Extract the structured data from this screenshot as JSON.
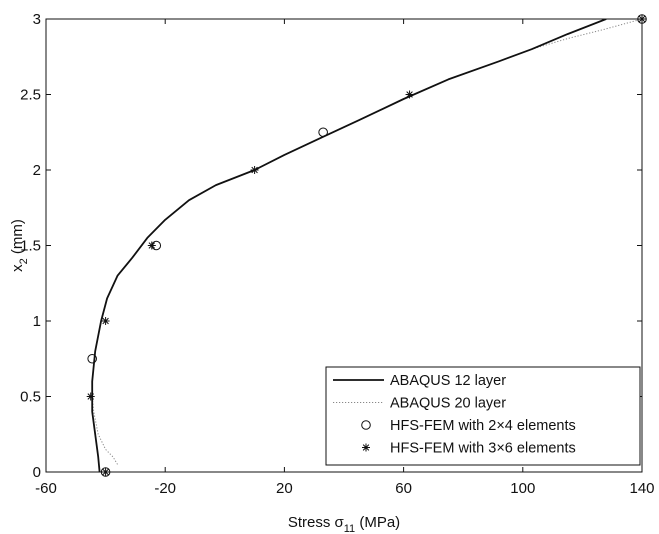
{
  "chart_data": {
    "type": "line",
    "xlabel": "Stress σ",
    "xlabel_subscript": "11",
    "xlabel_unit": " (MPa)",
    "ylabel": "x",
    "ylabel_subscript": "2",
    "ylabel_unit": " (mm)",
    "xlim": [
      -60,
      140
    ],
    "ylim": [
      0,
      3
    ],
    "xticks": [
      -60,
      -20,
      20,
      60,
      100,
      140
    ],
    "yticks": [
      0,
      0.5,
      1,
      1.5,
      2,
      2.5,
      3
    ],
    "xtick_labels": [
      "-60",
      "-20",
      "20",
      "60",
      "100",
      "140"
    ],
    "ytick_labels": [
      "0",
      "0.5",
      "1",
      "1.5",
      "2",
      "2.5",
      "3"
    ],
    "grid": false,
    "legend_position": "bottom-right",
    "series": [
      {
        "name": "ABAQUS 12 layer",
        "style": "solid",
        "color": "#111111",
        "x": [
          -42,
          -42.5,
          -43.5,
          -44.5,
          -44.5,
          -43.5,
          -41.5,
          -39.5,
          -36,
          -31,
          -26,
          -20,
          -12,
          -3,
          10,
          20,
          33,
          45,
          60,
          75,
          92,
          103,
          115,
          128
        ],
        "y": [
          0,
          0.1,
          0.25,
          0.4,
          0.6,
          0.8,
          1.0,
          1.15,
          1.3,
          1.42,
          1.55,
          1.67,
          1.8,
          1.9,
          2.0,
          2.1,
          2.22,
          2.33,
          2.47,
          2.6,
          2.72,
          2.8,
          2.9,
          3.0
        ]
      },
      {
        "name": "ABAQUS 20 layer",
        "style": "dotted",
        "color": "#888888",
        "x": [
          -36,
          -37.5,
          -40,
          -42.5,
          -44,
          -44.5,
          -44.5,
          -43.5,
          -41.5,
          -39.5,
          -36,
          -31,
          -26,
          -20,
          -12,
          -3,
          10,
          20,
          33,
          45,
          60,
          75,
          92,
          103,
          115,
          127,
          140
        ],
        "y": [
          0.05,
          0.1,
          0.15,
          0.25,
          0.4,
          0.5,
          0.6,
          0.8,
          1.0,
          1.15,
          1.3,
          1.42,
          1.55,
          1.67,
          1.8,
          1.9,
          2.0,
          2.1,
          2.22,
          2.33,
          2.47,
          2.6,
          2.72,
          2.8,
          2.87,
          2.93,
          3.0
        ]
      },
      {
        "name": "HFS-FEM with 2×4 elements",
        "marker": "circle",
        "color": "#111111",
        "x": [
          -40,
          -44.5,
          -23,
          33,
          140
        ],
        "y": [
          0,
          0.75,
          1.5,
          2.25,
          3
        ]
      },
      {
        "name": "HFS-FEM with 3×6 elements",
        "marker": "asterisk",
        "color": "#111111",
        "x": [
          -40,
          -45,
          -40,
          -24.5,
          10,
          62,
          140
        ],
        "y": [
          0,
          0.5,
          1,
          1.5,
          2,
          2.5,
          3
        ]
      }
    ]
  }
}
